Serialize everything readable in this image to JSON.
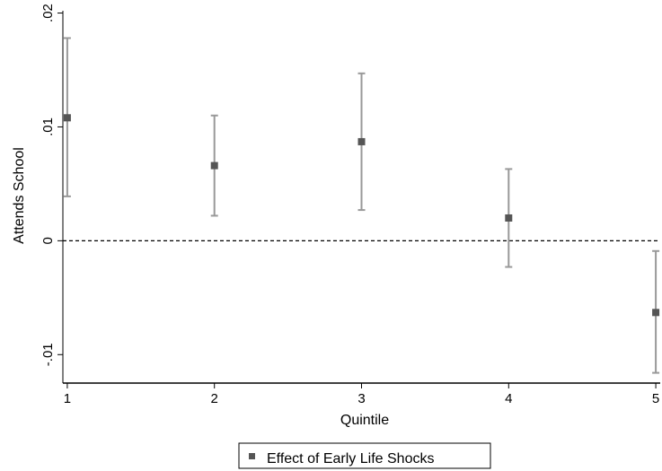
{
  "chart_data": {
    "type": "scatter",
    "title": "",
    "xlabel": "Quintile",
    "ylabel": "Attends School",
    "xlim": [
      0.97,
      5.03
    ],
    "ylim": [
      -0.0125,
      0.0202
    ],
    "x_ticks": [
      1,
      2,
      3,
      4,
      5
    ],
    "y_ticks": [
      -0.01,
      0,
      0.01,
      0.02
    ],
    "x_tick_labels": [
      "1",
      "2",
      "3",
      "4",
      "5"
    ],
    "y_tick_labels": [
      "-.01",
      "0",
      ".01",
      ".02"
    ],
    "reference_line": {
      "y": 0,
      "style": "dashed"
    },
    "series": [
      {
        "name": "Effect of Early Life Shocks",
        "color": "#555555",
        "errorbar_color": "#999999",
        "points": [
          {
            "x": 1,
            "y": 0.0108,
            "lo": 0.0039,
            "hi": 0.0178
          },
          {
            "x": 2,
            "y": 0.0066,
            "lo": 0.0022,
            "hi": 0.011
          },
          {
            "x": 3,
            "y": 0.0087,
            "lo": 0.0027,
            "hi": 0.0147
          },
          {
            "x": 4,
            "y": 0.002,
            "lo": -0.0023,
            "hi": 0.0063
          },
          {
            "x": 5,
            "y": -0.0063,
            "lo": -0.0116,
            "hi": -0.0009
          }
        ]
      }
    ],
    "legend": {
      "position": "bottom-center"
    },
    "grid": false
  }
}
